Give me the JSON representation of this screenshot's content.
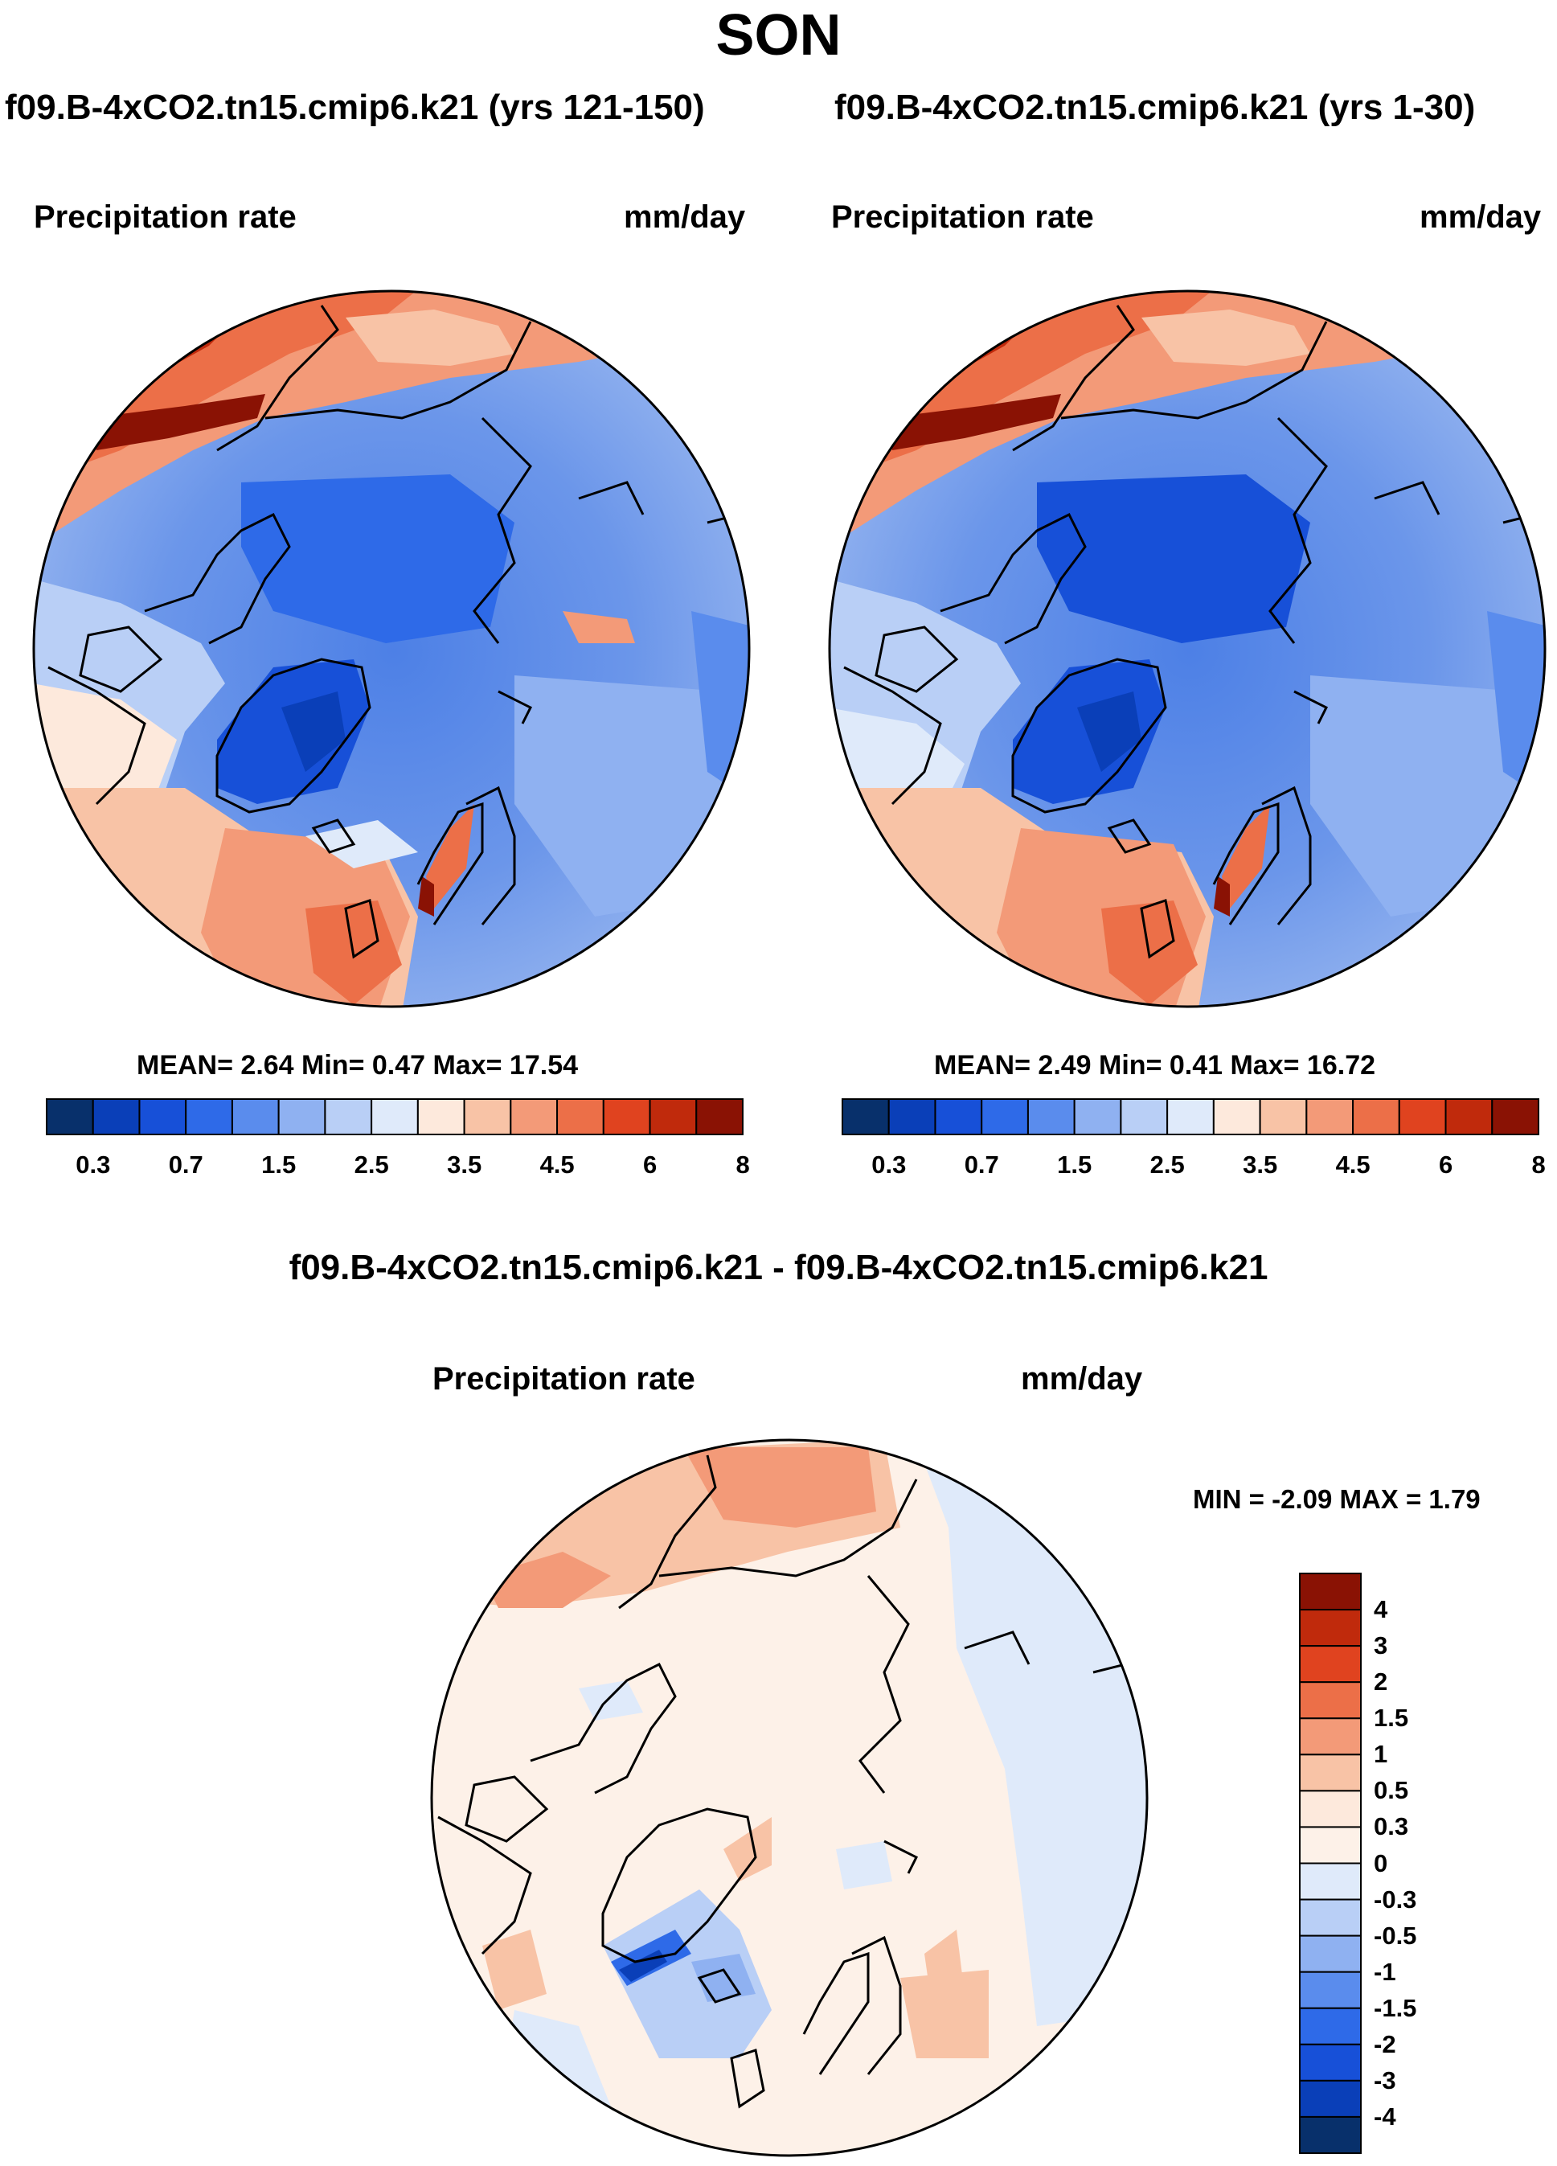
{
  "figure": {
    "title": "SON",
    "panels": [
      {
        "title": "f09.B-4xCO2.tn15.cmip6.k21 (yrs 121-150)",
        "variable": "Precipitation rate",
        "units": "mm/day",
        "stats_text": "MEAN=  2.64  Min=   0.47  Max=  17.54"
      },
      {
        "title": "f09.B-4xCO2.tn15.cmip6.k21 (yrs 1-30)",
        "variable": "Precipitation rate",
        "units": "mm/day",
        "stats_text": "MEAN=  2.49  Min=   0.41  Max=  16.72"
      }
    ],
    "difference": {
      "title": "f09.B-4xCO2.tn15.cmip6.k21 - f09.B-4xCO2.tn15.cmip6.k21",
      "variable": "Precipitation rate",
      "units": "mm/day",
      "minmax_text": "MIN =  -2.09 MAX =   1.79"
    }
  },
  "chart_data": [
    {
      "type": "heatmap",
      "projection": "north polar stereographic",
      "title": "f09.B-4xCO2.tn15.cmip6.k21 (yrs 121-150)",
      "variable": "Precipitation rate",
      "units": "mm/day",
      "mean": 2.64,
      "min": 0.47,
      "max": 17.54,
      "colorbar_labels": [
        "0.3",
        "0.7",
        "1.5",
        "2.5",
        "3.5",
        "4.5",
        "6",
        "8"
      ],
      "colorbar_colors": [
        "#08306b",
        "#0a3fb8",
        "#1750d8",
        "#2e6ae8",
        "#5a8ced",
        "#8fb1f1",
        "#b9cff6",
        "#dfeafa",
        "#fde9dc",
        "#f8c3a6",
        "#f39a78",
        "#ec6f48",
        "#e0431f",
        "#c02a0c",
        "#8a1204"
      ]
    },
    {
      "type": "heatmap",
      "projection": "north polar stereographic",
      "title": "f09.B-4xCO2.tn15.cmip6.k21 (yrs 1-30)",
      "variable": "Precipitation rate",
      "units": "mm/day",
      "mean": 2.49,
      "min": 0.41,
      "max": 16.72,
      "colorbar_labels": [
        "0.3",
        "0.7",
        "1.5",
        "2.5",
        "3.5",
        "4.5",
        "6",
        "8"
      ],
      "colorbar_colors": [
        "#08306b",
        "#0a3fb8",
        "#1750d8",
        "#2e6ae8",
        "#5a8ced",
        "#8fb1f1",
        "#b9cff6",
        "#dfeafa",
        "#fde9dc",
        "#f8c3a6",
        "#f39a78",
        "#ec6f48",
        "#e0431f",
        "#c02a0c",
        "#8a1204"
      ]
    },
    {
      "type": "heatmap",
      "projection": "north polar stereographic",
      "title": "f09.B-4xCO2.tn15.cmip6.k21 - f09.B-4xCO2.tn15.cmip6.k21",
      "variable": "Precipitation rate",
      "units": "mm/day",
      "min": -2.09,
      "max": 1.79,
      "colorbar_labels": [
        "4",
        "3",
        "2",
        "1.5",
        "1",
        "0.5",
        "0.3",
        "0",
        "-0.3",
        "-0.5",
        "-1",
        "-1.5",
        "-2",
        "-3",
        "-4"
      ],
      "colorbar_colors": [
        "#8a1204",
        "#c02a0c",
        "#e0431f",
        "#ec6f48",
        "#f39a78",
        "#f8c3a6",
        "#fde9dc",
        "#fdf1e8",
        "#dfeafa",
        "#b9cff6",
        "#8fb1f1",
        "#5a8ced",
        "#2e6ae8",
        "#1750d8",
        "#0a3fb8",
        "#08306b"
      ]
    }
  ]
}
